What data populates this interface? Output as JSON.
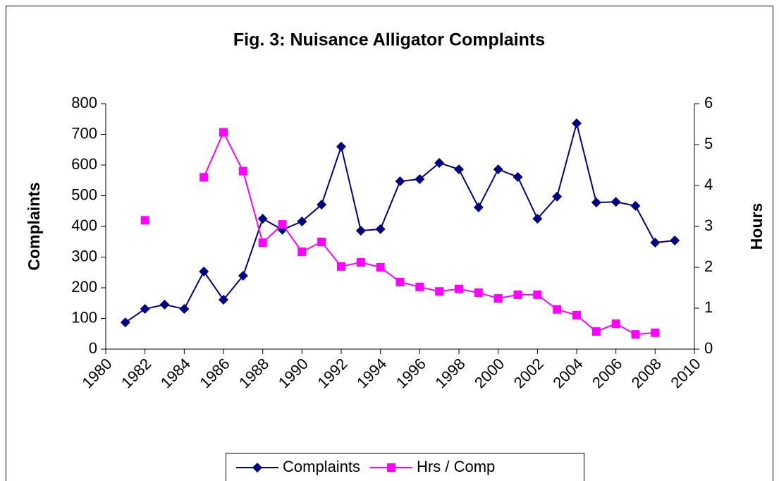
{
  "chart_data": {
    "type": "line",
    "title": "Fig. 3: Nuisance Alligator Complaints",
    "y_label": "Complaints",
    "y2_label": "Hours",
    "x": [
      1981,
      1982,
      1983,
      1984,
      1985,
      1986,
      1987,
      1988,
      1989,
      1990,
      1991,
      1992,
      1993,
      1994,
      1995,
      1996,
      1997,
      1998,
      1999,
      2000,
      2001,
      2002,
      2003,
      2004,
      2005,
      2006,
      2007,
      2008,
      2009
    ],
    "series": [
      {
        "name": "Complaints",
        "color": "#000080",
        "marker": "diamond",
        "values": [
          87,
          131,
          145,
          131,
          253,
          161,
          239,
          425,
          389,
          416,
          471,
          660,
          386,
          391,
          547,
          554,
          607,
          586,
          462,
          586,
          561,
          425,
          497,
          736,
          478,
          480,
          467,
          347,
          354
        ]
      },
      {
        "name": "Hrs / Comp",
        "color": "#ff00ff",
        "marker": "square",
        "axis": "y2",
        "values": [
          null,
          3.15,
          null,
          null,
          4.2,
          5.3,
          4.35,
          2.6,
          3.05,
          2.38,
          2.62,
          2.02,
          2.12,
          2.0,
          1.64,
          1.52,
          1.41,
          1.47,
          1.38,
          1.24,
          1.33,
          1.33,
          0.97,
          0.83,
          0.43,
          0.62,
          0.36,
          0.4,
          null
        ]
      }
    ],
    "xlim": [
      1980,
      2010
    ],
    "xticks": [
      1980,
      1982,
      1984,
      1986,
      1988,
      1990,
      1992,
      1994,
      1996,
      1998,
      2000,
      2002,
      2004,
      2006,
      2008,
      2010
    ],
    "ylim": [
      0,
      800
    ],
    "yticks": [
      0,
      100,
      200,
      300,
      400,
      500,
      600,
      700,
      800
    ],
    "y2lim": [
      0,
      6
    ],
    "y2ticks": [
      0,
      1,
      2,
      3,
      4,
      5,
      6
    ],
    "grid": false,
    "legend": "bottom"
  }
}
